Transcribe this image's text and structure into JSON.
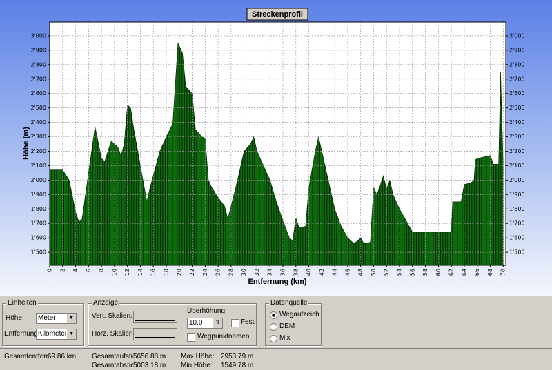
{
  "chart_data": {
    "type": "area",
    "title": "Streckenprofil",
    "x_label": "Entfernung (km)",
    "y_label": "Höhe (m)",
    "x": [
      0,
      2,
      3,
      4,
      4.5,
      5,
      6,
      7,
      8,
      8.5,
      9.5,
      10.5,
      11,
      11.5,
      12,
      12.5,
      13,
      14,
      15,
      15.5,
      17,
      18,
      19,
      19.8,
      20.5,
      21,
      22,
      22.5,
      23.5,
      24,
      24.5,
      25,
      26,
      27,
      27.5,
      29,
      30,
      31,
      31.5,
      32,
      33,
      34,
      35,
      36,
      37,
      37.5,
      38,
      38.5,
      39.5,
      40,
      41,
      41.5,
      42,
      43,
      44,
      45,
      46,
      47,
      48,
      48.5,
      49.5,
      50,
      50.5,
      51,
      51.5,
      52,
      52.5,
      53,
      54,
      55,
      56,
      56.5,
      62,
      62.2,
      63.5,
      64,
      65,
      65.5,
      65.7,
      66,
      68,
      68.5,
      69.3,
      69.6,
      69.8,
      70
    ],
    "values": [
      2070,
      2070,
      2000,
      1780,
      1710,
      1730,
      2050,
      2370,
      2150,
      2130,
      2270,
      2230,
      2170,
      2250,
      2520,
      2500,
      2350,
      2100,
      1850,
      1950,
      2200,
      2300,
      2390,
      2950,
      2880,
      2650,
      2600,
      2350,
      2300,
      2290,
      2000,
      1950,
      1880,
      1820,
      1730,
      2000,
      2200,
      2250,
      2300,
      2200,
      2100,
      2000,
      1850,
      1720,
      1600,
      1580,
      1740,
      1670,
      1680,
      1950,
      2200,
      2300,
      2200,
      2000,
      1800,
      1680,
      1600,
      1560,
      1600,
      1560,
      1570,
      1950,
      1900,
      1960,
      2030,
      1940,
      2000,
      1900,
      1800,
      1720,
      1640,
      1640,
      1640,
      1850,
      1850,
      1970,
      1980,
      2000,
      2140,
      2150,
      2170,
      2110,
      2110,
      2750,
      2420,
      2120
    ],
    "color": "#0d6a0d",
    "xlim": [
      0,
      70.4
    ],
    "ylim": [
      1410,
      3095
    ],
    "xticks": [
      0,
      2,
      4,
      6,
      8,
      10,
      12,
      14,
      16,
      18,
      20,
      22,
      24,
      26,
      28,
      30,
      32,
      34,
      36,
      38,
      40,
      42,
      44,
      46,
      48,
      50,
      52,
      54,
      56,
      58,
      60,
      62,
      64,
      66,
      68,
      70
    ],
    "yticks": [
      {
        "value": 1500,
        "label": "1'500"
      },
      {
        "value": 1600,
        "label": "1'600"
      },
      {
        "value": 1700,
        "label": "1'700"
      },
      {
        "value": 1800,
        "label": "1'800"
      },
      {
        "value": 1900,
        "label": "1'900"
      },
      {
        "value": 2000,
        "label": "2'000"
      },
      {
        "value": 2100,
        "label": "2'100"
      },
      {
        "value": 2200,
        "label": "2'200"
      },
      {
        "value": 2300,
        "label": "2'300"
      },
      {
        "value": 2400,
        "label": "2'400"
      },
      {
        "value": 2500,
        "label": "2'500"
      },
      {
        "value": 2600,
        "label": "2'600"
      },
      {
        "value": 2700,
        "label": "2'700"
      },
      {
        "value": 2800,
        "label": "2'800"
      },
      {
        "value": 2900,
        "label": "2'900"
      },
      {
        "value": 3000,
        "label": "3'000"
      }
    ],
    "grid": true
  },
  "controls": {
    "units": {
      "title": "Einheiten",
      "height_label": "Höhe:",
      "height_value": "Meter",
      "distance_label": "Entfernung:",
      "distance_value": "Kilometer"
    },
    "display": {
      "title": "Anzeige",
      "vert_label": "Vert. Skalierung",
      "horz_label": "Horz. Skalierung",
      "exaggeration_label": "Überhöhung",
      "exaggeration_value": "10.0",
      "lock_label": "Feststellen",
      "waypoints_label": "Wegpunktnamen"
    },
    "source": {
      "title": "Datenquelle",
      "options": [
        "Wegaufzeichnung",
        "DEM",
        "Mix"
      ]
    }
  },
  "status": {
    "total_distance_label": "Gesamtentfernung:",
    "total_distance": "69.86 km",
    "ascent_label": "Gesamtaufstieg:",
    "ascent": "5656.88 m",
    "descent_label": "Gesamtabstieg:",
    "descent": "5003.18 m",
    "max_label": "Max Höhe:",
    "max": "2953.79 m",
    "min_label": "Min Höhe:",
    "min": "1549.78 m"
  }
}
